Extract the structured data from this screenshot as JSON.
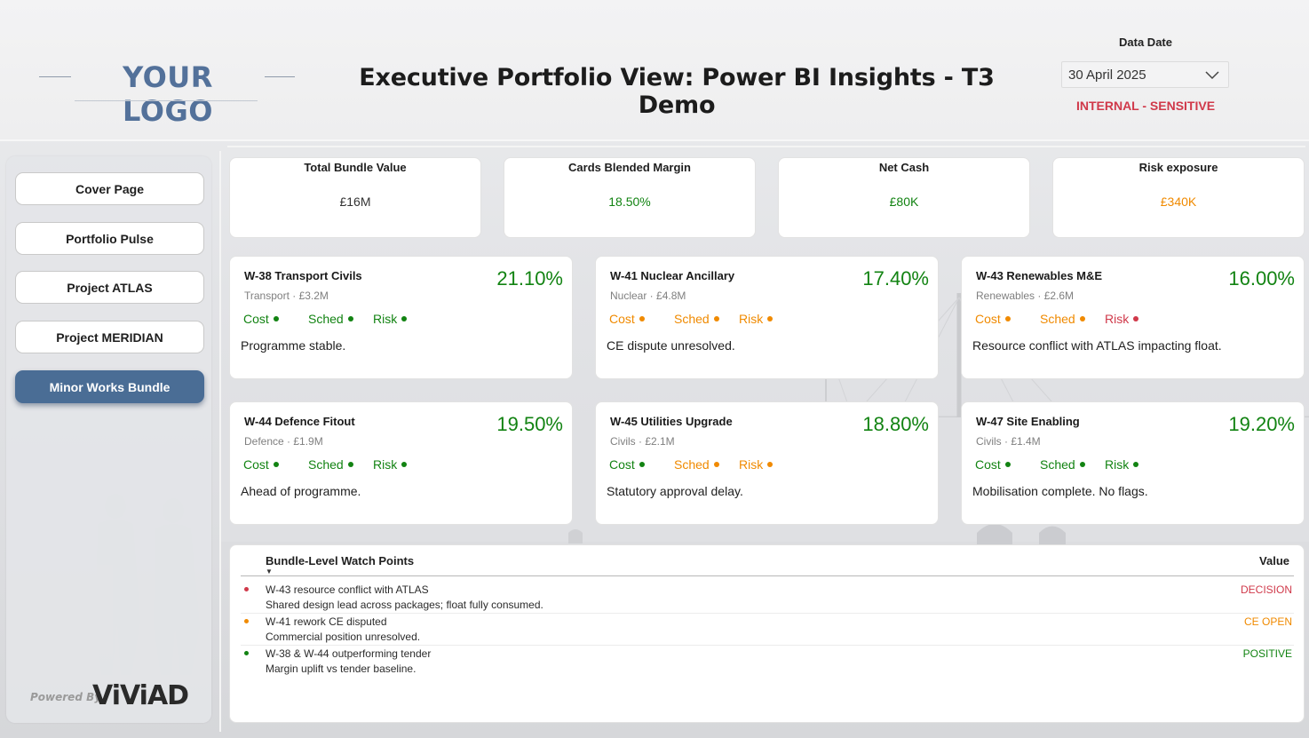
{
  "colors": {
    "green": "#128312",
    "orange": "#f08a00",
    "red": "#d0394a",
    "accent": "#4a6d95",
    "logo": "#53719a"
  },
  "header": {
    "logo_text": "YOUR LOGO",
    "title": "Executive Portfolio View: Power BI Insights - T3 Demo",
    "date_label": "Data Date",
    "date_value": "30 April 2025",
    "sensitivity": "INTERNAL - SENSITIVE"
  },
  "sidebar": {
    "items": [
      {
        "label": "Cover Page",
        "active": false
      },
      {
        "label": "Portfolio Pulse",
        "active": false
      },
      {
        "label": "Project ATLAS",
        "active": false
      },
      {
        "label": "Project MERIDIAN",
        "active": false
      },
      {
        "label": "Minor Works Bundle",
        "active": true
      }
    ],
    "powered_by": "Powered By",
    "brand": "ViViAD"
  },
  "kpis": [
    {
      "title": "Total Bundle Value",
      "value": "£16M",
      "status": "neutral"
    },
    {
      "title": "Cards Blended Margin",
      "value": "18.50%",
      "status": "green"
    },
    {
      "title": "Net Cash",
      "value": "£80K",
      "status": "green"
    },
    {
      "title": "Risk exposure",
      "value": "£340K",
      "status": "orange"
    }
  ],
  "cards": [
    {
      "name": "W-38 Transport Civils",
      "sub": "Transport · £3.2M",
      "pct": "21.10%",
      "cost": "Cost",
      "cost_status": "green",
      "sched": "Sched",
      "sched_status": "green",
      "risk": "Risk",
      "risk_status": "green",
      "comment": "Programme stable."
    },
    {
      "name": "W-41 Nuclear Ancillary",
      "sub": "Nuclear · £4.8M",
      "pct": "17.40%",
      "cost": "Cost",
      "cost_status": "orange",
      "sched": "Sched",
      "sched_status": "orange",
      "risk": "Risk",
      "risk_status": "orange",
      "comment": "CE dispute unresolved."
    },
    {
      "name": "W-43 Renewables M&E",
      "sub": "Renewables · £2.6M",
      "pct": "16.00%",
      "cost": "Cost",
      "cost_status": "orange",
      "sched": "Sched",
      "sched_status": "orange",
      "risk": "Risk",
      "risk_status": "red",
      "comment": "Resource conflict with ATLAS impacting float."
    },
    {
      "name": "W-44 Defence Fitout",
      "sub": "Defence · £1.9M",
      "pct": "19.50%",
      "cost": "Cost",
      "cost_status": "green",
      "sched": "Sched",
      "sched_status": "green",
      "risk": "Risk",
      "risk_status": "green",
      "comment": "Ahead of programme."
    },
    {
      "name": "W-45 Utilities Upgrade",
      "sub": "Civils · £2.1M",
      "pct": "18.80%",
      "cost": "Cost",
      "cost_status": "green",
      "sched": "Sched",
      "sched_status": "orange",
      "risk": "Risk",
      "risk_status": "orange",
      "comment": "Statutory approval delay."
    },
    {
      "name": "W-47 Site Enabling",
      "sub": "Civils · £1.4M",
      "pct": "19.20%",
      "cost": "Cost",
      "cost_status": "green",
      "sched": "Sched",
      "sched_status": "green",
      "risk": "Risk",
      "risk_status": "green",
      "comment": "Mobilisation complete. No flags."
    }
  ],
  "watch": {
    "col_point": "Bundle-Level Watch Points",
    "col_value": "Value",
    "sort_indicator": "▼",
    "rows": [
      {
        "title": "W-43 resource conflict with ATLAS",
        "desc": "Shared design lead across packages; float fully consumed.",
        "value": "DECISION",
        "status": "red"
      },
      {
        "title": "W-41 rework CE disputed",
        "desc": "Commercial position unresolved.",
        "value": "CE OPEN",
        "status": "orange"
      },
      {
        "title": "W-38 & W-44 outperforming tender",
        "desc": "Margin uplift vs tender baseline.",
        "value": "POSITIVE",
        "status": "green"
      }
    ]
  }
}
